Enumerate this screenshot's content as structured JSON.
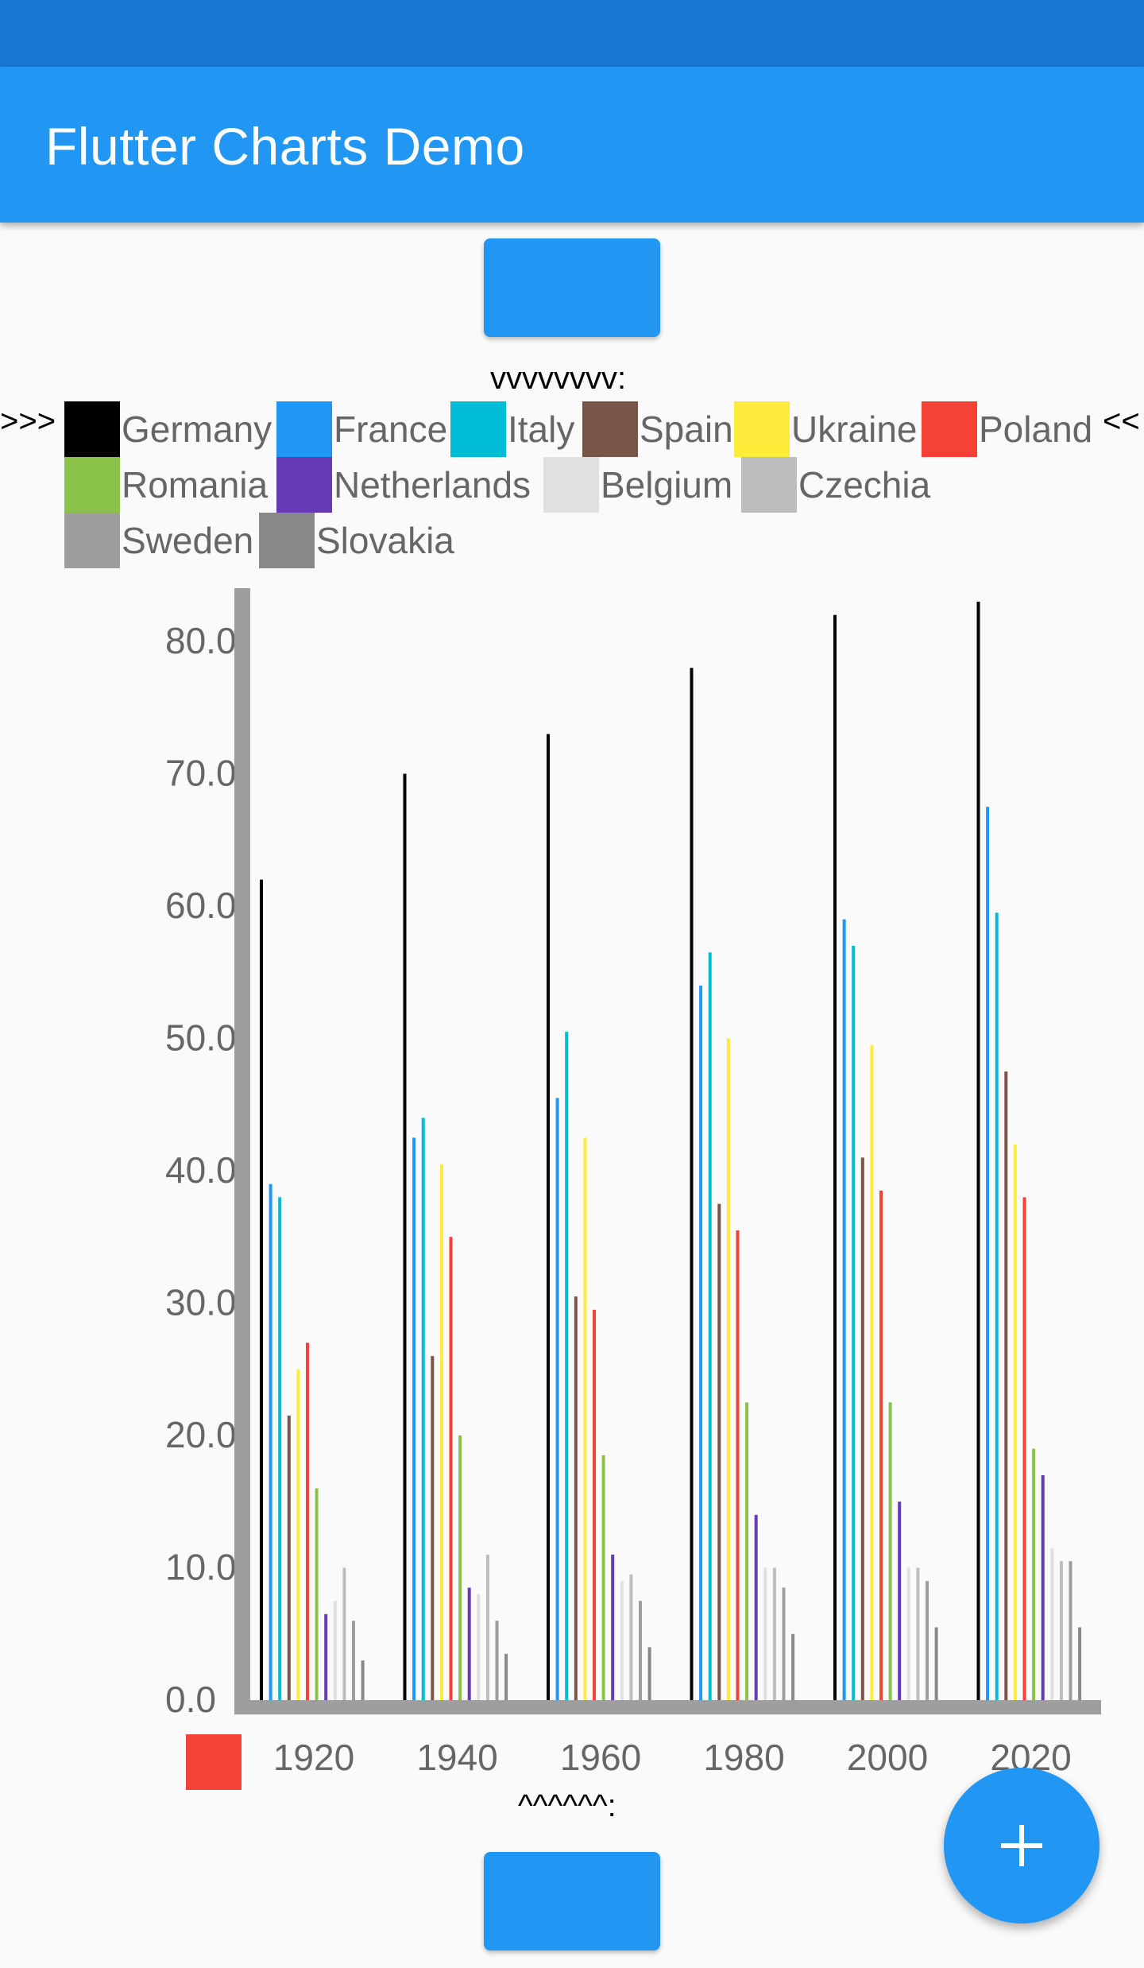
{
  "app": {
    "title": "Flutter Charts Demo"
  },
  "hints": {
    "top": "vvvvvvvv:",
    "bottom": "^^^^^^:"
  },
  "legend": {
    "left_marker": ">>>",
    "right_marker": "<<"
  },
  "colors": {
    "status_bar": "#1976d2",
    "app_bar": "#2196f3",
    "button": "#2196f3",
    "axis": "#9e9e9e",
    "tick_label": "#666666",
    "x_legend_swatch": "#f44336"
  },
  "fab": {
    "icon": "plus-icon"
  },
  "chart_data": {
    "type": "bar",
    "categories": [
      "1920",
      "1940",
      "1960",
      "1980",
      "2000",
      "2020"
    ],
    "ylim": [
      0,
      83
    ],
    "yticks": [
      "0.0",
      "10.0",
      "20.0",
      "30.0",
      "40.0",
      "50.0",
      "60.0",
      "70.0",
      "80.0"
    ],
    "legend_position": "top",
    "series": [
      {
        "name": "Germany",
        "color": "#000000",
        "values": [
          62,
          70,
          73,
          78,
          82,
          83
        ]
      },
      {
        "name": "France",
        "color": "#2196f3",
        "values": [
          39,
          42.5,
          45.5,
          54,
          59,
          67.5
        ]
      },
      {
        "name": "Italy",
        "color": "#00bcd4",
        "values": [
          38,
          44,
          50.5,
          56.5,
          57,
          59.5
        ]
      },
      {
        "name": "Spain",
        "color": "#795548",
        "values": [
          21.5,
          26,
          30.5,
          37.5,
          41,
          47.5
        ]
      },
      {
        "name": "Ukraine",
        "color": "#ffeb3b",
        "values": [
          25,
          40.5,
          42.5,
          50,
          49.5,
          42
        ]
      },
      {
        "name": "Poland",
        "color": "#f44336",
        "values": [
          27,
          35,
          29.5,
          35.5,
          38.5,
          38
        ]
      },
      {
        "name": "Romania",
        "color": "#8bc34a",
        "values": [
          16,
          20,
          18.5,
          22.5,
          22.5,
          19
        ]
      },
      {
        "name": "Netherlands",
        "color": "#673ab7",
        "values": [
          6.5,
          8.5,
          11,
          14,
          15,
          17
        ]
      },
      {
        "name": "Belgium",
        "color": "#e0e0e0",
        "values": [
          7.5,
          8,
          9,
          10,
          10,
          11.5
        ]
      },
      {
        "name": "Czechia",
        "color": "#bdbdbd",
        "values": [
          10,
          11,
          9.5,
          10,
          10,
          10.5
        ]
      },
      {
        "name": "Sweden",
        "color": "#9e9e9e",
        "values": [
          6,
          6,
          7.5,
          8.5,
          9,
          10.5
        ]
      },
      {
        "name": "Slovakia",
        "color": "#888888",
        "values": [
          3,
          3.5,
          4,
          5,
          5.5,
          5.5
        ]
      }
    ]
  }
}
